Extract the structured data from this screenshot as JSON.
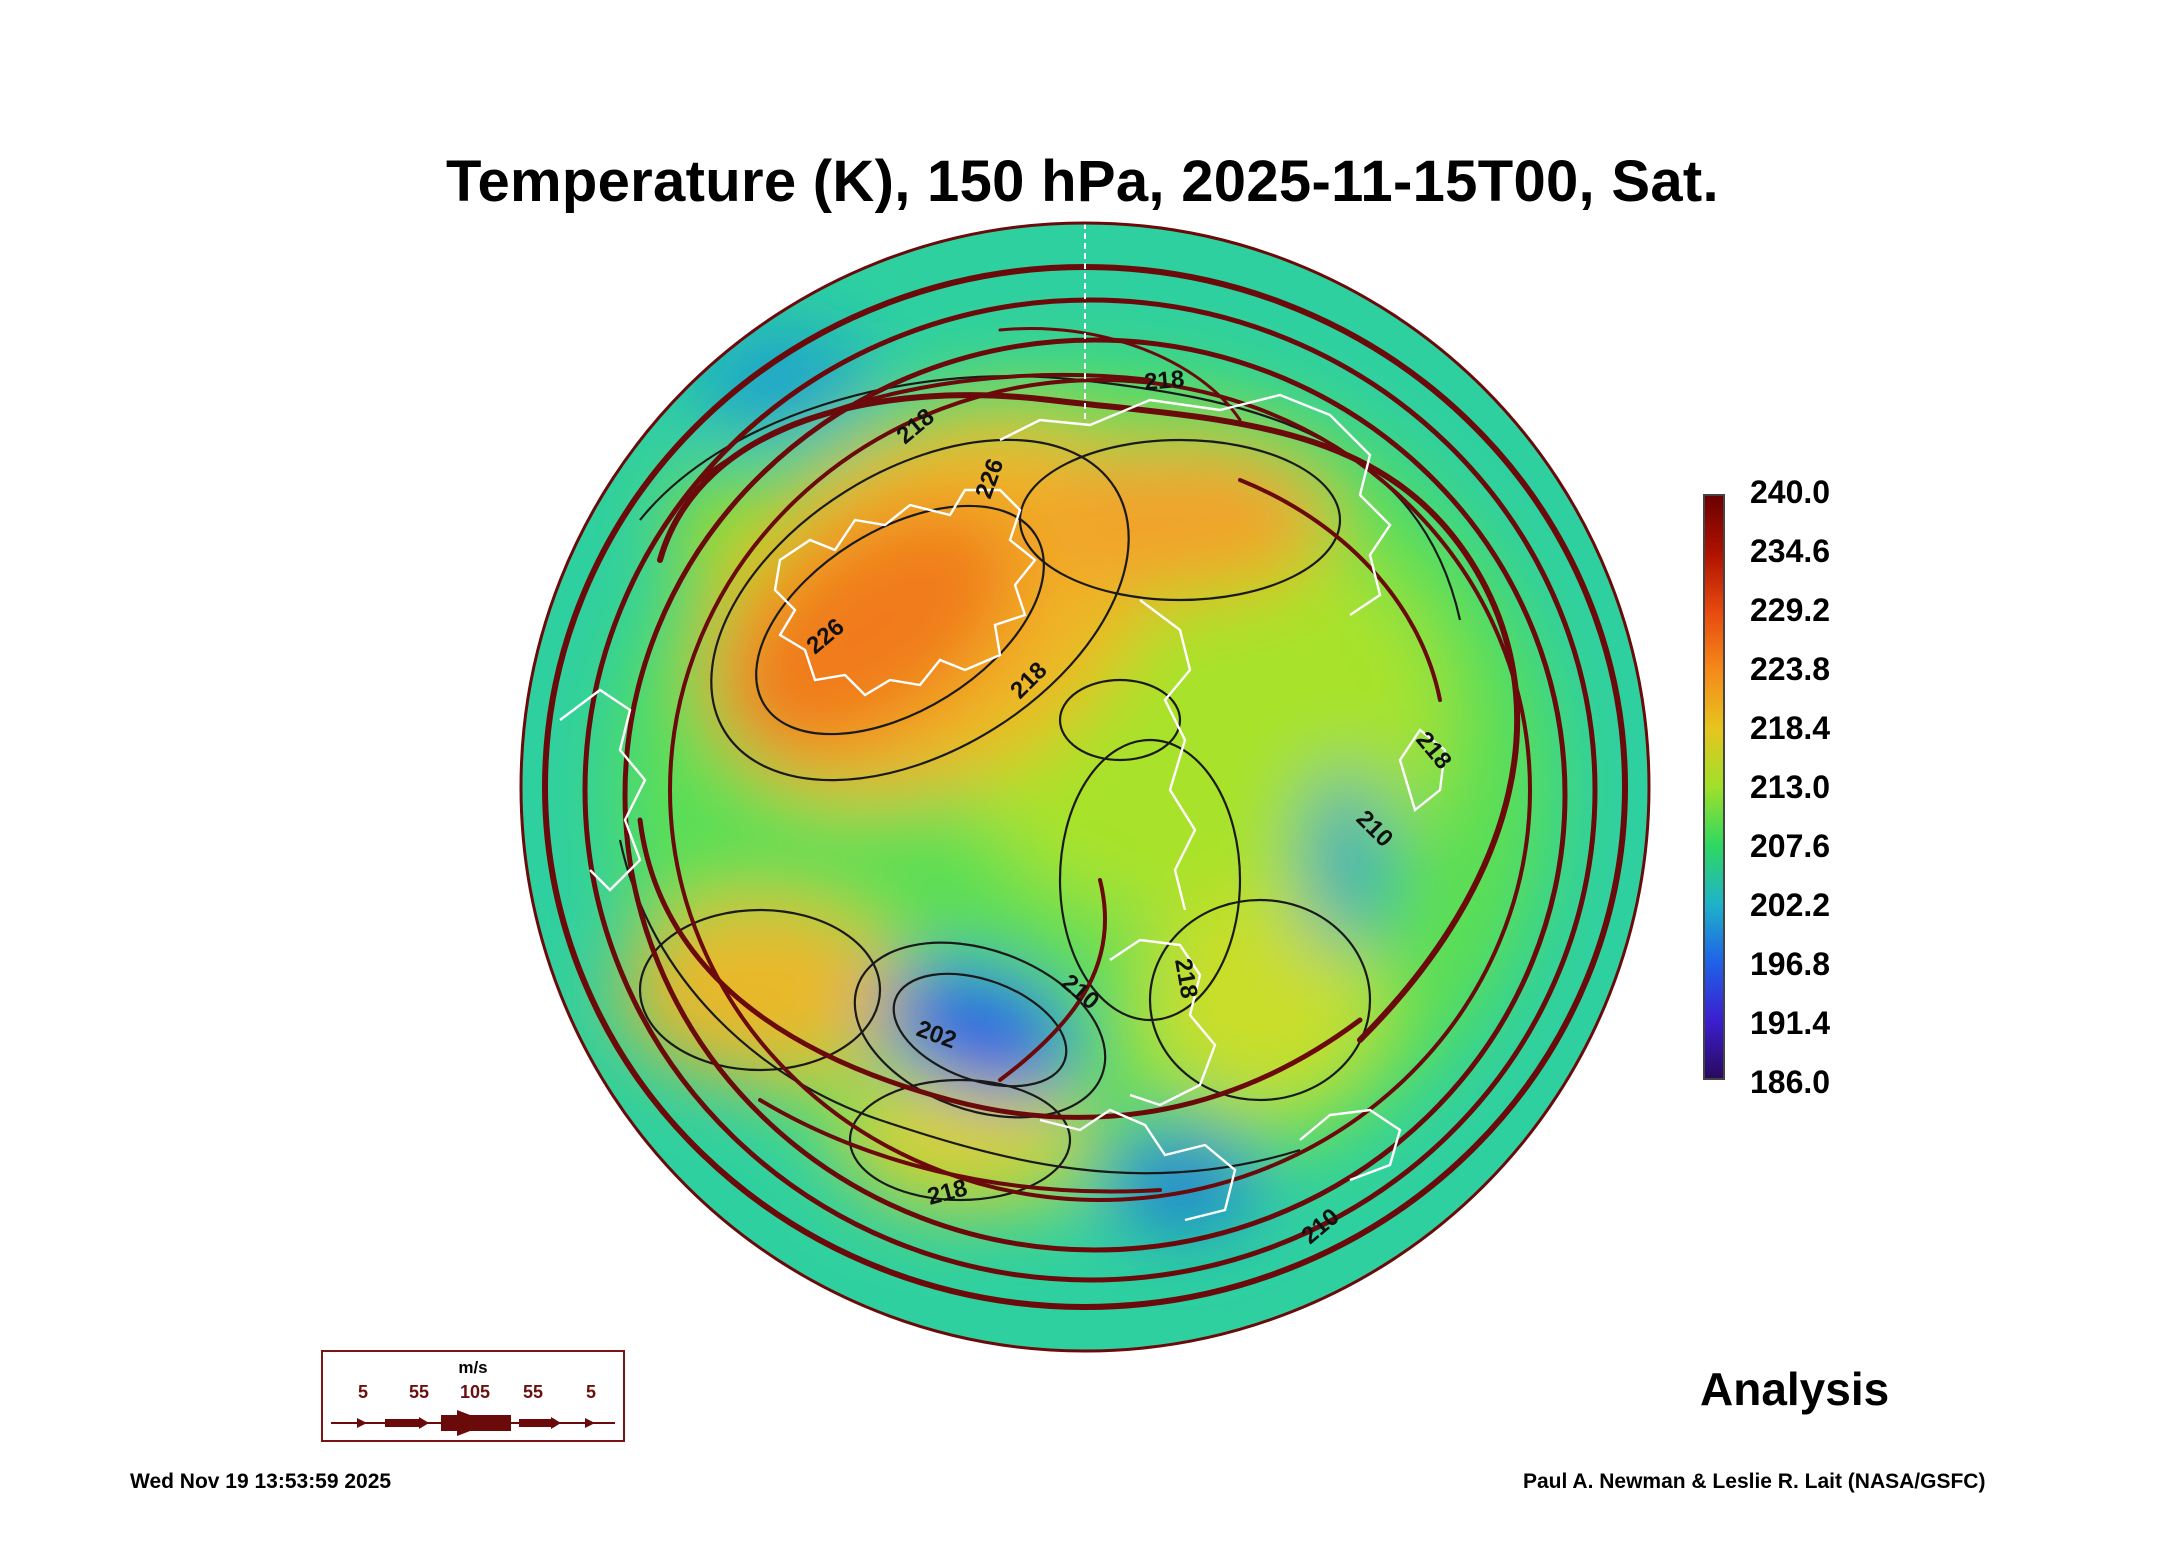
{
  "title": "Temperature (K), 150 hPa, 2025-11-15T00, Sat.",
  "colorbar": {
    "labels": [
      "240.0",
      "234.6",
      "229.2",
      "223.8",
      "218.4",
      "213.0",
      "207.6",
      "202.2",
      "196.8",
      "191.4",
      "186.0"
    ],
    "colors": [
      "#6b0000",
      "#b01200",
      "#e84a10",
      "#f58a1a",
      "#e6c51e",
      "#9fe02a",
      "#2fd860",
      "#1fb3c8",
      "#1f63e8",
      "#3b1fd0",
      "#2a0a5e"
    ]
  },
  "contour_labels": [
    "226",
    "226",
    "218",
    "218",
    "218",
    "210",
    "218",
    "210",
    "202",
    "218",
    "218",
    "210"
  ],
  "wind_key": {
    "unit": "m/s",
    "labels": [
      "5",
      "55",
      "105",
      "55",
      "5"
    ]
  },
  "panel_label": "Analysis",
  "footer": {
    "timestamp": "Wed Nov 19 13:53:59 2025",
    "credit": "Paul A. Newman & Leslie R. Lait (NASA/GSFC)"
  },
  "colors": {
    "streamline": "#6b0a0a",
    "coastline": "#ffffff",
    "contour": "#1a1a1a"
  }
}
